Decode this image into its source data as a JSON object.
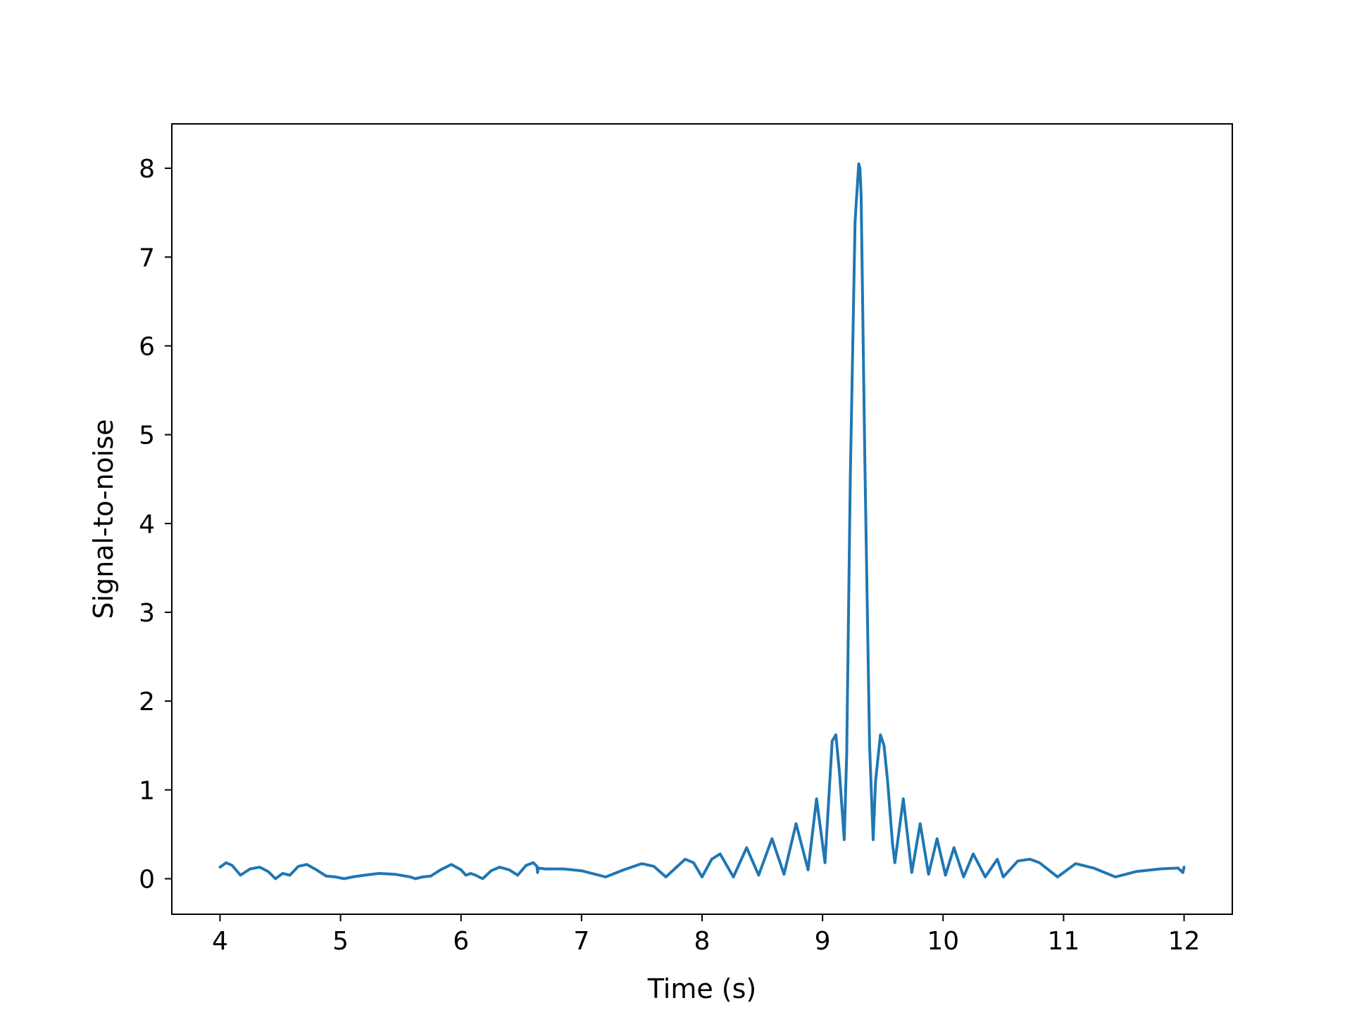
{
  "chart_data": {
    "type": "line",
    "title": "",
    "xlabel": "Time (s)",
    "ylabel": "Signal-to-noise",
    "xlim": [
      3.6,
      12.4
    ],
    "ylim": [
      -0.4,
      8.5
    ],
    "xticks": [
      4,
      5,
      6,
      7,
      8,
      9,
      10,
      11,
      12
    ],
    "yticks": [
      0,
      1,
      2,
      3,
      4,
      5,
      6,
      7,
      8
    ],
    "grid": false,
    "legend": "none",
    "series": [
      {
        "color": "#1f77b4",
        "x": [
          4.0,
          4.05,
          4.1,
          4.17,
          4.25,
          4.33,
          4.4,
          4.46,
          4.52,
          4.58,
          4.65,
          4.72,
          4.8,
          4.88,
          4.96,
          5.03,
          5.1,
          5.2,
          5.32,
          5.45,
          5.58,
          5.62,
          5.68,
          5.75,
          5.83,
          5.92,
          6.0,
          6.04,
          6.08,
          6.12,
          6.18,
          6.25,
          6.32,
          6.4,
          6.47,
          6.54,
          6.6,
          6.63,
          6.635,
          6.64,
          6.7,
          6.85,
          7.0,
          7.2,
          7.35,
          7.5,
          7.6,
          7.7,
          7.78,
          7.86,
          7.93,
          8.0,
          8.08,
          8.15,
          8.26,
          8.37,
          8.47,
          8.58,
          8.68,
          8.78,
          8.88,
          8.95,
          9.02,
          9.08,
          9.11,
          9.14,
          9.18,
          9.2,
          9.23,
          9.27,
          9.3,
          9.31,
          9.32,
          9.35,
          9.39,
          9.42,
          9.44,
          9.48,
          9.51,
          9.54,
          9.58,
          9.6,
          9.67,
          9.74,
          9.81,
          9.88,
          9.95,
          10.02,
          10.09,
          10.17,
          10.25,
          10.35,
          10.45,
          10.5,
          10.62,
          10.72,
          10.8,
          10.95,
          11.1,
          11.25,
          11.43,
          11.6,
          11.8,
          11.95,
          11.99,
          12.0
        ],
        "y": [
          0.13,
          0.18,
          0.15,
          0.04,
          0.11,
          0.13,
          0.08,
          0.0,
          0.06,
          0.04,
          0.14,
          0.16,
          0.1,
          0.03,
          0.02,
          0.0,
          0.02,
          0.04,
          0.06,
          0.05,
          0.02,
          0.0,
          0.02,
          0.03,
          0.1,
          0.16,
          0.1,
          0.04,
          0.06,
          0.04,
          0.0,
          0.09,
          0.13,
          0.1,
          0.04,
          0.15,
          0.18,
          0.14,
          0.07,
          0.12,
          0.11,
          0.11,
          0.09,
          0.02,
          0.1,
          0.17,
          0.14,
          0.02,
          0.12,
          0.22,
          0.18,
          0.02,
          0.22,
          0.28,
          0.02,
          0.35,
          0.04,
          0.45,
          0.05,
          0.62,
          0.1,
          0.9,
          0.18,
          1.55,
          1.62,
          1.2,
          0.44,
          1.4,
          4.5,
          7.4,
          8.05,
          8.0,
          7.7,
          4.8,
          1.5,
          0.44,
          1.1,
          1.62,
          1.5,
          1.1,
          0.4,
          0.18,
          0.9,
          0.07,
          0.62,
          0.05,
          0.45,
          0.04,
          0.35,
          0.02,
          0.28,
          0.02,
          0.22,
          0.02,
          0.2,
          0.22,
          0.18,
          0.02,
          0.17,
          0.12,
          0.02,
          0.08,
          0.11,
          0.12,
          0.07,
          0.13
        ]
      }
    ]
  }
}
